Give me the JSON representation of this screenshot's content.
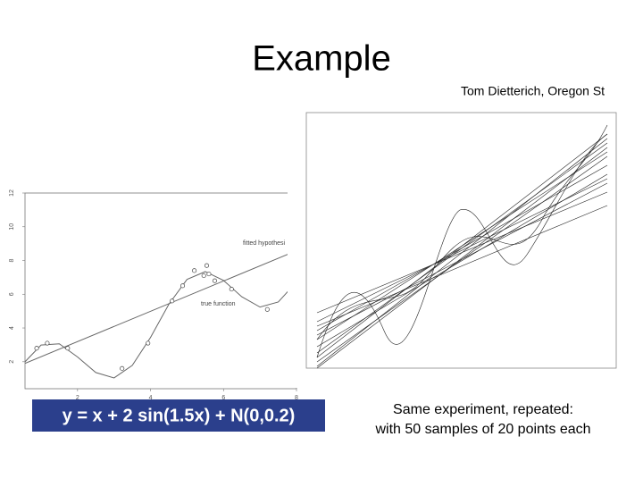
{
  "title": "Example",
  "attribution": "Tom Dietterich, Oregon St",
  "formula": "y = x + 2 sin(1.5x) + N(0,0.2)",
  "caption": [
    "Same experiment, repeated:",
    "with 50 samples of 20 points each"
  ],
  "chart_data": {
    "type": "scatter",
    "xlim": [
      0.56,
      8
    ],
    "ylim": [
      0.4,
      12
    ],
    "xticks": [
      2,
      4,
      6,
      8
    ],
    "yticks": [
      2,
      4,
      6,
      8,
      10,
      12
    ],
    "points": {
      "x": [
        0.88,
        1.17,
        1.73,
        3.22,
        3.93,
        4.59,
        4.88,
        5.2,
        5.46,
        5.54,
        5.6,
        5.76,
        6.22,
        7.2
      ],
      "y": [
        2.8,
        3.1,
        2.8,
        1.6,
        3.1,
        5.6,
        6.5,
        7.4,
        7.1,
        7.7,
        7.2,
        6.8,
        6.3,
        5.1
      ]
    },
    "series": [
      {
        "name": "true function",
        "color": "#666666",
        "x": [
          0.5,
          1,
          1.5,
          2,
          2.5,
          3,
          3.5,
          4,
          4.5,
          5,
          5.5,
          6,
          6.5,
          7,
          7.5,
          7.8
        ],
        "values": [
          1.86,
          2.99,
          3.06,
          2.28,
          1.36,
          1.04,
          1.78,
          3.44,
          5.4,
          6.88,
          7.34,
          6.82,
          5.85,
          5.24,
          5.54,
          6.25
        ]
      },
      {
        "name": "fitted hypothesi",
        "color": "#666666",
        "x": [
          0.56,
          7.8
        ],
        "values": [
          1.9,
          8.4
        ]
      }
    ]
  }
}
